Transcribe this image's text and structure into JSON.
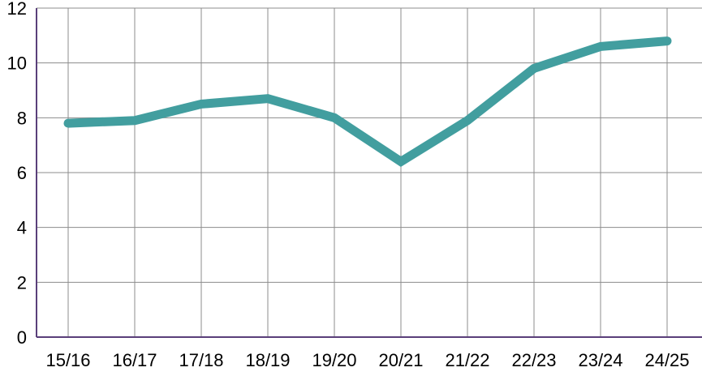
{
  "chart_data": {
    "type": "line",
    "title": "",
    "xlabel": "",
    "ylabel": "",
    "categories": [
      "15/16",
      "16/17",
      "17/18",
      "18/19",
      "19/20",
      "20/21",
      "21/22",
      "22/23",
      "23/24",
      "24/25"
    ],
    "series": [
      {
        "values": [
          7.8,
          7.9,
          8.5,
          8.7,
          8.0,
          6.4,
          7.9,
          9.8,
          10.6,
          10.8
        ],
        "color": "#429e9f"
      }
    ],
    "ylim": [
      0,
      12
    ],
    "yticks": [
      0,
      2,
      4,
      6,
      8,
      10,
      12
    ],
    "grid": true,
    "legend": "none",
    "colors": {
      "grid": "#8c8c8c",
      "axis": "#5a3f7a",
      "line": "#429e9f"
    }
  }
}
